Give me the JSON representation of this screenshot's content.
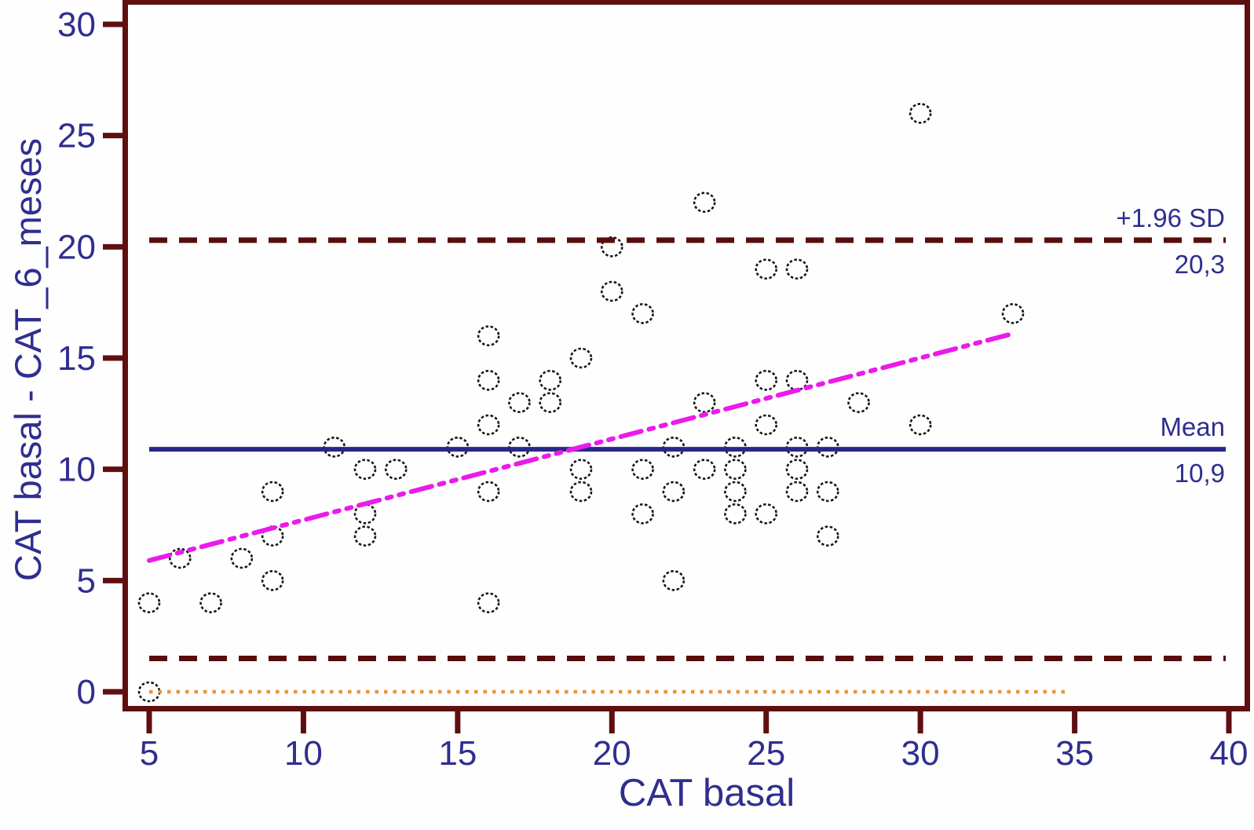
{
  "colors": {
    "axis": "#5f0f0f",
    "text": "#2f2e8f",
    "tick_label": "#2f2e8f",
    "annotation": "#2f2e8f",
    "point_stroke": "#161616",
    "mean_line": "#28288a",
    "loa_line": "#580d0d",
    "zero_line": "#e8943c",
    "trend_line": "#ea1bea"
  },
  "chart_data": {
    "type": "scatter",
    "title": "",
    "xlabel": "CAT basal",
    "ylabel": "CAT basal - CAT_6_meses",
    "x_ticks": [
      5,
      10,
      15,
      20,
      25,
      30,
      35,
      40
    ],
    "y_ticks": [
      0,
      5,
      10,
      15,
      20,
      25,
      30
    ],
    "xlim": [
      4.2,
      40.7
    ],
    "ylim": [
      -0.8,
      31.1
    ],
    "grid": false,
    "legend": "none",
    "points": [
      [
        5,
        0
      ],
      [
        5,
        4
      ],
      [
        6,
        6
      ],
      [
        7,
        4
      ],
      [
        8,
        6
      ],
      [
        9,
        5
      ],
      [
        9,
        7
      ],
      [
        9,
        9
      ],
      [
        11,
        11
      ],
      [
        12,
        7
      ],
      [
        12,
        8
      ],
      [
        12,
        10
      ],
      [
        13,
        10
      ],
      [
        15,
        11
      ],
      [
        16,
        4
      ],
      [
        16,
        9
      ],
      [
        16,
        12
      ],
      [
        16,
        14
      ],
      [
        16,
        16
      ],
      [
        17,
        11
      ],
      [
        17,
        13
      ],
      [
        18,
        13
      ],
      [
        18,
        14
      ],
      [
        19,
        9
      ],
      [
        19,
        10
      ],
      [
        19,
        15
      ],
      [
        20,
        18
      ],
      [
        20,
        20
      ],
      [
        21,
        8
      ],
      [
        21,
        10
      ],
      [
        21,
        17
      ],
      [
        22,
        5
      ],
      [
        22,
        9
      ],
      [
        22,
        11
      ],
      [
        23,
        10
      ],
      [
        23,
        13
      ],
      [
        23,
        22
      ],
      [
        24,
        8
      ],
      [
        24,
        9
      ],
      [
        24,
        10
      ],
      [
        24,
        11
      ],
      [
        25,
        8
      ],
      [
        25,
        12
      ],
      [
        25,
        14
      ],
      [
        25,
        19
      ],
      [
        26,
        9
      ],
      [
        26,
        10
      ],
      [
        26,
        11
      ],
      [
        26,
        14
      ],
      [
        26,
        19
      ],
      [
        27,
        7
      ],
      [
        27,
        9
      ],
      [
        27,
        11
      ],
      [
        28,
        13
      ],
      [
        30,
        12
      ],
      [
        30,
        26
      ],
      [
        33,
        17
      ]
    ],
    "reference_lines": [
      {
        "name": "upper-loa",
        "label": "+1.96 SD",
        "value_label": "20,3",
        "y": 20.3,
        "style": "dashed",
        "color": "#580d0d",
        "x_start": 5,
        "x_end": 39.9
      },
      {
        "name": "mean",
        "label": "Mean",
        "value_label": "10,9",
        "y": 10.9,
        "style": "solid",
        "color": "#28288a",
        "x_start": 5,
        "x_end": 39.9
      },
      {
        "name": "lower-loa",
        "label": "",
        "value_label": "",
        "y": 1.5,
        "style": "dashed",
        "color": "#580d0d",
        "x_start": 5,
        "x_end": 39.9
      },
      {
        "name": "zero",
        "label": "",
        "value_label": "",
        "y": 0,
        "style": "dotted",
        "color": "#e8943c",
        "x_start": 5,
        "x_end": 34.7
      }
    ],
    "trend_line": {
      "x1": 5,
      "y1": 5.9,
      "x2": 33,
      "y2": 16.1,
      "style": "dash-dot-dot",
      "color": "#ea1bea"
    }
  }
}
